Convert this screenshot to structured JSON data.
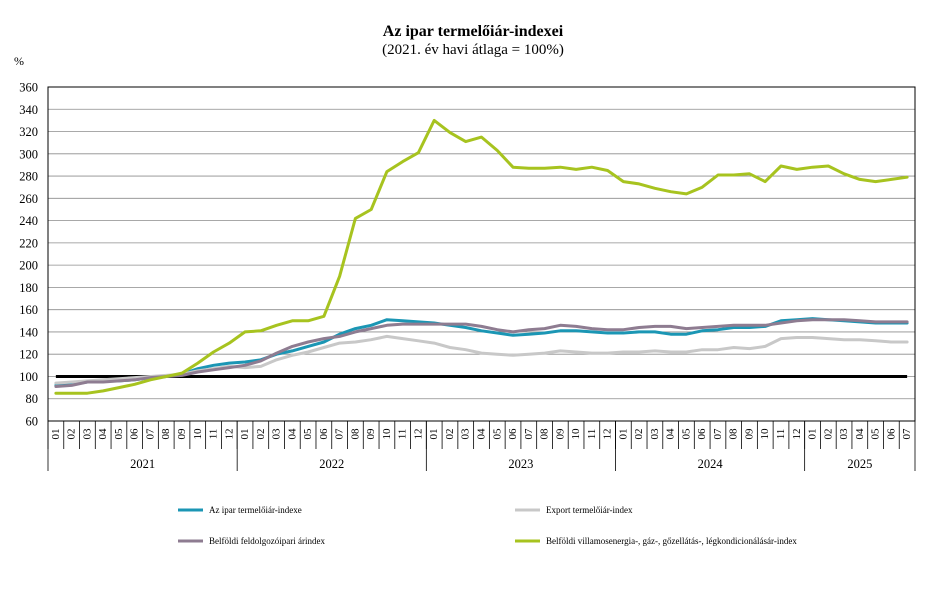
{
  "chart_data": {
    "type": "line",
    "title": "Az ipar termelőiár-indexei",
    "subtitle": "(2021. év havi átlaga = 100%)",
    "ylabel": "%",
    "ylim": [
      60,
      360
    ],
    "yticks": [
      60,
      80,
      100,
      120,
      140,
      160,
      180,
      200,
      220,
      240,
      260,
      280,
      300,
      320,
      340,
      360
    ],
    "grid": true,
    "reference_line": {
      "value": 100,
      "color": "#000000"
    },
    "years": [
      {
        "label": "2021",
        "months": 12
      },
      {
        "label": "2022",
        "months": 12
      },
      {
        "label": "2023",
        "months": 12
      },
      {
        "label": "2024",
        "months": 12
      },
      {
        "label": "2025",
        "months": 7
      }
    ],
    "month_labels": [
      "01",
      "02",
      "03",
      "04",
      "05",
      "06",
      "07",
      "08",
      "09",
      "10",
      "11",
      "12"
    ],
    "series": [
      {
        "name": "Az ipar termelőiár-indexe",
        "color": "#1b96b4",
        "values": [
          92,
          93,
          95,
          96,
          96,
          97,
          99,
          100,
          102,
          107,
          110,
          112,
          113,
          115,
          120,
          123,
          127,
          131,
          138,
          143,
          146,
          151,
          150,
          149,
          148,
          146,
          144,
          141,
          139,
          137,
          138,
          139,
          141,
          141,
          140,
          139,
          139,
          140,
          140,
          138,
          138,
          141,
          142,
          144,
          144,
          145,
          150,
          151,
          152,
          151,
          150,
          149,
          148,
          148,
          148
        ]
      },
      {
        "name": "Export termelőiár-index",
        "color": "#c8c8c8",
        "values": [
          94,
          95,
          96,
          97,
          98,
          99,
          100,
          101,
          102,
          105,
          107,
          109,
          108,
          109,
          115,
          119,
          122,
          126,
          130,
          131,
          133,
          136,
          134,
          132,
          130,
          126,
          124,
          121,
          120,
          119,
          120,
          121,
          123,
          122,
          121,
          121,
          122,
          122,
          123,
          122,
          122,
          124,
          124,
          126,
          125,
          127,
          134,
          135,
          135,
          134,
          133,
          133,
          132,
          131,
          131
        ]
      },
      {
        "name": "Belföldi feldolgozóipari árindex",
        "color": "#8e7c91",
        "values": [
          91,
          92,
          95,
          95,
          96,
          97,
          99,
          100,
          101,
          104,
          106,
          108,
          110,
          114,
          121,
          127,
          131,
          134,
          136,
          140,
          143,
          146,
          147,
          147,
          147,
          147,
          147,
          145,
          142,
          140,
          142,
          143,
          146,
          145,
          143,
          142,
          142,
          144,
          145,
          145,
          143,
          144,
          145,
          146,
          146,
          146,
          148,
          150,
          151,
          151,
          151,
          150,
          149,
          149,
          149
        ]
      },
      {
        "name": "Belföldi villamosenergia-, gáz-, gőzellátás-, légkondicionálásár-index",
        "color": "#a7c31f",
        "values": [
          85,
          85,
          85,
          87,
          90,
          93,
          97,
          100,
          103,
          112,
          122,
          130,
          140,
          141,
          146,
          150,
          150,
          154,
          190,
          242,
          250,
          284,
          293,
          301,
          330,
          319,
          311,
          315,
          303,
          288,
          287,
          287,
          288,
          286,
          288,
          285,
          275,
          273,
          269,
          266,
          264,
          270,
          281,
          281,
          282,
          275,
          289,
          286,
          288,
          289,
          282,
          277,
          275,
          277,
          279
        ]
      }
    ]
  }
}
